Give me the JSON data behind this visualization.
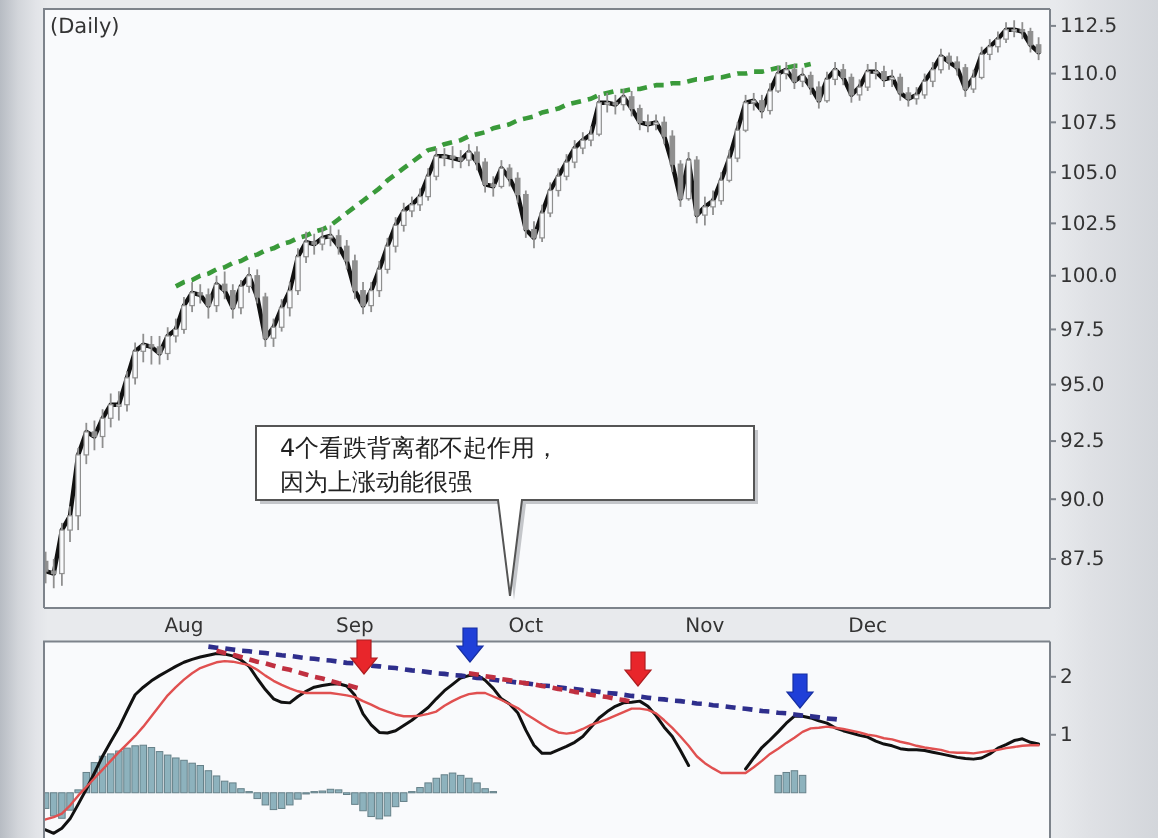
{
  "chart_data": [
    {
      "type": "line",
      "title": "(Daily)",
      "log": true,
      "categories": [
        null,
        null,
        null,
        null,
        null,
        null,
        null,
        null,
        null,
        null,
        null,
        null,
        null,
        null,
        null,
        null,
        null,
        "Aug",
        null,
        null,
        null,
        null,
        null,
        null,
        null,
        null,
        null,
        null,
        null,
        null,
        null,
        null,
        null,
        null,
        null,
        null,
        null,
        null,
        "Sep",
        null,
        null,
        null,
        null,
        null,
        null,
        null,
        null,
        null,
        null,
        null,
        null,
        null,
        null,
        null,
        null,
        null,
        null,
        null,
        null,
        "Oct",
        null,
        null,
        null,
        null,
        null,
        null,
        null,
        null,
        null,
        null,
        null,
        null,
        null,
        null,
        null,
        null,
        null,
        null,
        null,
        null,
        null,
        "Nov",
        null,
        null,
        null,
        null,
        null,
        null,
        null,
        null,
        null,
        null,
        null,
        null,
        null,
        null,
        null,
        null,
        null,
        null,
        null,
        "Dec",
        null,
        null,
        null,
        null,
        null,
        null,
        null,
        null,
        null,
        null,
        null,
        null,
        null,
        null,
        null,
        null,
        null,
        null,
        null,
        null,
        null
      ],
      "ylim": [
        85.5,
        113.4
      ],
      "yticks": [
        87.5,
        {
          "value": 90,
          "label": "90.0"
        },
        92.5,
        {
          "value": 95,
          "label": "95.0"
        },
        97.5,
        {
          "value": 100,
          "label": "100.0"
        },
        102.5,
        {
          "value": 105,
          "label": "105.0"
        },
        107.5,
        {
          "value": 110,
          "label": "110.0"
        },
        112.5
      ],
      "series": [
        {
          "color": "#111111",
          "values": [
            87.0,
            86.9,
            88.7,
            89.3,
            91.9,
            92.9,
            92.7,
            93.5,
            94.1,
            94.1,
            95.3,
            96.5,
            96.8,
            96.7,
            96.4,
            97.2,
            97.5,
            98.6,
            99.2,
            99.1,
            98.6,
            99.6,
            99.3,
            98.5,
            99.5,
            100.0,
            99.0,
            97.1,
            97.6,
            98.5,
            99.3,
            100.9,
            101.6,
            101.5,
            101.8,
            101.9,
            101.4,
            100.7,
            99.3,
            98.6,
            99.3,
            100.3,
            101.4,
            102.4,
            103.1,
            103.4,
            103.8,
            104.8,
            105.8,
            105.8,
            105.7,
            105.6,
            106.0,
            105.5,
            104.4,
            104.3,
            105.2,
            104.7,
            103.9,
            102.2,
            101.8,
            103.0,
            104.1,
            104.8,
            105.5,
            106.2,
            106.6,
            106.9,
            108.5,
            108.5,
            108.4,
            108.8,
            108.2,
            107.5,
            107.4,
            107.5,
            106.8,
            105.4,
            103.7,
            105.6,
            102.9,
            103.3,
            103.6,
            104.6,
            105.7,
            107.1,
            108.5,
            108.6,
            108.1,
            109.1,
            110.0,
            110.2,
            109.6,
            109.9,
            109.3,
            108.6,
            109.7,
            110.2,
            109.8,
            108.9,
            109.3,
            110.1,
            110.1,
            109.7,
            109.8,
            109.0,
            108.7,
            108.9,
            109.6,
            110.2,
            110.9,
            110.6,
            110.3,
            109.2,
            109.8,
            111.0,
            111.4,
            111.8,
            112.3,
            112.3,
            112.2,
            111.5,
            111.1
          ]
        },
        {
          "type": "candlestick",
          "color": "#8f8f8f",
          "ohlc": [
            [
              87.4,
              87.8,
              86.5,
              87.0
            ],
            [
              87.0,
              87.5,
              86.3,
              86.9
            ],
            [
              86.9,
              89.0,
              86.4,
              88.7
            ],
            [
              88.7,
              89.7,
              88.2,
              89.3
            ],
            [
              89.3,
              92.2,
              88.7,
              91.9
            ],
            [
              91.9,
              93.3,
              91.5,
              92.9
            ],
            [
              92.9,
              93.4,
              92.1,
              92.7
            ],
            [
              92.7,
              93.9,
              92.2,
              93.5
            ],
            [
              93.5,
              94.6,
              93.1,
              94.1
            ],
            [
              94.1,
              94.7,
              93.4,
              94.1
            ],
            [
              94.1,
              95.6,
              93.8,
              95.3
            ],
            [
              95.3,
              96.9,
              95.0,
              96.5
            ],
            [
              96.5,
              97.3,
              96.0,
              96.8
            ],
            [
              96.8,
              97.2,
              95.9,
              96.7
            ],
            [
              96.7,
              97.2,
              95.9,
              96.4
            ],
            [
              96.4,
              97.6,
              96.1,
              97.2
            ],
            [
              97.2,
              98.0,
              96.9,
              97.5
            ],
            [
              97.5,
              99.0,
              97.3,
              98.6
            ],
            [
              98.6,
              99.7,
              98.3,
              99.2
            ],
            [
              99.2,
              99.6,
              98.7,
              99.1
            ],
            [
              99.1,
              99.4,
              98.0,
              98.6
            ],
            [
              98.6,
              100.0,
              98.3,
              99.6
            ],
            [
              99.6,
              100.2,
              98.9,
              99.3
            ],
            [
              99.3,
              99.6,
              98.0,
              98.5
            ],
            [
              98.5,
              99.8,
              98.2,
              99.5
            ],
            [
              99.5,
              100.4,
              99.2,
              100.0
            ],
            [
              100.0,
              100.3,
              98.7,
              99.0
            ],
            [
              99.0,
              99.2,
              96.7,
              97.1
            ],
            [
              97.1,
              98.0,
              96.7,
              97.6
            ],
            [
              97.6,
              98.9,
              97.4,
              98.5
            ],
            [
              98.5,
              99.7,
              98.1,
              99.3
            ],
            [
              99.3,
              101.3,
              99.1,
              100.9
            ],
            [
              100.9,
              102.1,
              100.6,
              101.6
            ],
            [
              101.6,
              102.0,
              101.0,
              101.5
            ],
            [
              101.5,
              102.3,
              101.2,
              101.8
            ],
            [
              101.8,
              102.4,
              101.4,
              101.9
            ],
            [
              101.9,
              102.2,
              101.0,
              101.4
            ],
            [
              101.4,
              101.7,
              100.3,
              100.7
            ],
            [
              100.7,
              101.0,
              98.9,
              99.3
            ],
            [
              99.3,
              99.7,
              98.2,
              98.6
            ],
            [
              98.6,
              99.7,
              98.3,
              99.3
            ],
            [
              99.3,
              100.7,
              99.0,
              100.3
            ],
            [
              100.3,
              101.8,
              100.1,
              101.4
            ],
            [
              101.4,
              102.8,
              101.1,
              102.4
            ],
            [
              102.4,
              103.5,
              102.1,
              103.1
            ],
            [
              103.1,
              103.8,
              102.8,
              103.4
            ],
            [
              103.4,
              104.2,
              103.1,
              103.8
            ],
            [
              103.8,
              105.2,
              103.6,
              104.8
            ],
            [
              104.8,
              106.2,
              104.6,
              105.8
            ],
            [
              105.8,
              106.2,
              105.3,
              105.8
            ],
            [
              105.8,
              106.3,
              105.2,
              105.7
            ],
            [
              105.7,
              106.1,
              105.2,
              105.6
            ],
            [
              105.6,
              106.4,
              105.3,
              106.0
            ],
            [
              106.0,
              106.3,
              105.1,
              105.5
            ],
            [
              105.5,
              105.7,
              104.0,
              104.4
            ],
            [
              104.4,
              104.8,
              103.8,
              104.3
            ],
            [
              104.3,
              105.6,
              104.2,
              105.2
            ],
            [
              105.2,
              105.4,
              104.3,
              104.7
            ],
            [
              104.7,
              105.0,
              103.5,
              103.9
            ],
            [
              103.9,
              104.1,
              101.8,
              102.2
            ],
            [
              102.2,
              102.6,
              101.3,
              101.8
            ],
            [
              101.8,
              103.4,
              101.6,
              103.0
            ],
            [
              103.0,
              104.5,
              102.8,
              104.1
            ],
            [
              104.1,
              105.2,
              103.8,
              104.8
            ],
            [
              104.8,
              105.9,
              104.6,
              105.5
            ],
            [
              105.5,
              106.6,
              105.2,
              106.2
            ],
            [
              106.2,
              107.0,
              105.9,
              106.6
            ],
            [
              106.6,
              107.3,
              106.3,
              106.9
            ],
            [
              106.9,
              108.9,
              106.8,
              108.5
            ],
            [
              108.5,
              109.0,
              108.0,
              108.5
            ],
            [
              108.5,
              108.9,
              107.9,
              108.4
            ],
            [
              108.4,
              109.2,
              108.1,
              108.8
            ],
            [
              108.8,
              109.1,
              107.8,
              108.2
            ],
            [
              108.2,
              108.4,
              107.1,
              107.5
            ],
            [
              107.5,
              107.9,
              107.0,
              107.4
            ],
            [
              107.4,
              107.9,
              107.1,
              107.5
            ],
            [
              107.5,
              107.8,
              106.4,
              106.8
            ],
            [
              106.8,
              107.1,
              105.0,
              105.4
            ],
            [
              105.4,
              105.6,
              103.3,
              103.7
            ],
            [
              103.7,
              106.0,
              103.6,
              105.6
            ],
            [
              105.6,
              105.8,
              102.5,
              102.9
            ],
            [
              102.9,
              103.8,
              102.4,
              103.3
            ],
            [
              103.3,
              104.1,
              102.9,
              103.6
            ],
            [
              103.6,
              105.0,
              103.4,
              104.6
            ],
            [
              104.6,
              106.1,
              104.5,
              105.7
            ],
            [
              105.7,
              107.5,
              105.5,
              107.1
            ],
            [
              107.1,
              108.9,
              107.0,
              108.5
            ],
            [
              108.5,
              109.0,
              108.1,
              108.6
            ],
            [
              108.6,
              108.9,
              107.7,
              108.1
            ],
            [
              108.1,
              109.5,
              107.9,
              109.1
            ],
            [
              109.1,
              110.4,
              109.0,
              110.0
            ],
            [
              110.0,
              110.6,
              109.7,
              110.2
            ],
            [
              110.2,
              110.5,
              109.2,
              109.6
            ],
            [
              109.6,
              110.3,
              109.3,
              109.9
            ],
            [
              109.9,
              110.1,
              108.9,
              109.3
            ],
            [
              109.3,
              109.6,
              108.2,
              108.6
            ],
            [
              108.6,
              110.1,
              108.5,
              109.7
            ],
            [
              109.7,
              110.6,
              109.4,
              110.2
            ],
            [
              110.2,
              110.5,
              109.4,
              109.8
            ],
            [
              109.8,
              110.0,
              108.5,
              108.9
            ],
            [
              108.9,
              109.7,
              108.6,
              109.3
            ],
            [
              109.3,
              110.5,
              109.1,
              110.1
            ],
            [
              110.1,
              110.6,
              109.7,
              110.1
            ],
            [
              110.1,
              110.4,
              109.3,
              109.7
            ],
            [
              109.7,
              110.2,
              109.3,
              109.8
            ],
            [
              109.8,
              110.0,
              108.6,
              109.0
            ],
            [
              109.0,
              109.3,
              108.3,
              108.7
            ],
            [
              108.7,
              109.3,
              108.4,
              108.9
            ],
            [
              108.9,
              110.0,
              108.7,
              109.6
            ],
            [
              109.6,
              110.6,
              109.3,
              110.2
            ],
            [
              110.2,
              111.3,
              110.0,
              110.9
            ],
            [
              110.9,
              111.1,
              110.2,
              110.6
            ],
            [
              110.6,
              110.9,
              109.9,
              110.3
            ],
            [
              110.3,
              110.5,
              108.8,
              109.2
            ],
            [
              109.2,
              110.2,
              109.0,
              109.8
            ],
            [
              109.8,
              111.4,
              109.7,
              111.0
            ],
            [
              111.0,
              111.8,
              110.7,
              111.4
            ],
            [
              111.4,
              112.2,
              111.1,
              111.8
            ],
            [
              111.8,
              112.7,
              111.6,
              112.3
            ],
            [
              112.3,
              112.8,
              111.9,
              112.3
            ],
            [
              112.3,
              112.7,
              111.8,
              112.2
            ],
            [
              112.2,
              112.4,
              111.1,
              111.5
            ],
            [
              111.5,
              111.9,
              110.7,
              111.1
            ]
          ]
        },
        {
          "color": "#3a9a3a",
          "line_style": "dashed",
          "values": [
            null,
            null,
            null,
            null,
            null,
            null,
            null,
            null,
            null,
            null,
            null,
            null,
            null,
            null,
            null,
            null,
            99.5,
            99.7,
            99.8,
            100.0,
            100.1,
            100.3,
            100.4,
            100.6,
            100.7,
            100.9,
            101.0,
            101.2,
            101.3,
            101.5,
            101.6,
            101.8,
            101.9,
            102.1,
            102.2,
            102.4,
            102.7,
            103.0,
            103.3,
            103.6,
            103.9,
            104.2,
            104.6,
            104.9,
            105.2,
            105.5,
            105.8,
            106.1,
            106.2,
            106.4,
            106.5,
            106.6,
            106.8,
            106.9,
            107.0,
            107.2,
            107.3,
            107.4,
            107.6,
            107.7,
            107.8,
            108.0,
            108.1,
            108.2,
            108.4,
            108.5,
            108.6,
            108.7,
            108.9,
            109.0,
            109.1,
            109.1,
            109.2,
            109.2,
            109.3,
            109.4,
            109.4,
            109.5,
            109.5,
            109.6,
            109.7,
            109.7,
            109.8,
            109.8,
            109.9,
            110.0,
            110.0,
            110.1,
            110.1,
            110.2,
            110.3,
            110.3,
            110.4,
            110.4,
            110.5,
            null,
            null,
            null,
            null,
            null,
            null,
            null,
            null,
            null,
            null,
            null,
            null,
            null,
            null,
            null,
            null,
            null,
            null,
            null,
            null,
            null,
            null,
            null,
            null,
            null,
            null,
            null,
            null
          ]
        }
      ],
      "annotations": [
        "4个看跌背离都不起作用，",
        "因为上涨动能很强"
      ]
    },
    {
      "type": "line",
      "tick_labels": "y",
      "categories": [
        null,
        null,
        null,
        null,
        null,
        null,
        null,
        null,
        null,
        null,
        null,
        null,
        null,
        null,
        null,
        null,
        null,
        null,
        null,
        null,
        null,
        null,
        null,
        null,
        null,
        null,
        null,
        null,
        null,
        null,
        null,
        null,
        null,
        null,
        null,
        null,
        null,
        null,
        null,
        null,
        null,
        null,
        null,
        null,
        null,
        null,
        null,
        null,
        null,
        null,
        null,
        null,
        null,
        null,
        null,
        null,
        null,
        null,
        null,
        null,
        null,
        null,
        null,
        null,
        null,
        null,
        null,
        null,
        null,
        null,
        null,
        null,
        null,
        null,
        null,
        null,
        null,
        null,
        null,
        null,
        null,
        null,
        null,
        null,
        null,
        null,
        null,
        null,
        null,
        null,
        null,
        null,
        null,
        null,
        null,
        null,
        null,
        null,
        null,
        null,
        null,
        null,
        null,
        null,
        null,
        null,
        null,
        null,
        null,
        null,
        null,
        null,
        null,
        null,
        null,
        null,
        null,
        null,
        null,
        null,
        null,
        null,
        null
      ],
      "ylim": [
        -0.78,
        2.61
      ],
      "yticks": [
        1,
        2
      ],
      "series": [
        {
          "type": "bar",
          "color": "#8db2bd",
          "values": [
            -0.27,
            -0.4,
            -0.44,
            -0.3,
            0.05,
            0.35,
            0.52,
            0.63,
            0.67,
            0.72,
            0.77,
            0.81,
            0.82,
            0.78,
            0.71,
            0.65,
            0.6,
            0.56,
            0.51,
            0.47,
            0.38,
            0.29,
            0.2,
            0.17,
            0.07,
            0.02,
            -0.1,
            -0.21,
            -0.29,
            -0.27,
            -0.21,
            -0.11,
            -0.02,
            0.02,
            0.03,
            0.06,
            0.05,
            -0.03,
            -0.2,
            -0.31,
            -0.41,
            -0.45,
            -0.4,
            -0.24,
            -0.15,
            0.02,
            0.09,
            0.17,
            0.25,
            0.31,
            0.34,
            0.3,
            0.25,
            0.17,
            0.07,
            0.02,
            null,
            null,
            null,
            null,
            null,
            null,
            null,
            null,
            null,
            null,
            null,
            null,
            null,
            null,
            null,
            null,
            null,
            null,
            null,
            null,
            null,
            null,
            null,
            null,
            null,
            null,
            null,
            null,
            null,
            null,
            null,
            null,
            null,
            null,
            0.3,
            0.35,
            0.38,
            0.3,
            null,
            null,
            null,
            null,
            null,
            null,
            null,
            null,
            null,
            null,
            null,
            null,
            null,
            null,
            null,
            null,
            null,
            null,
            null,
            null,
            null,
            null,
            null,
            null,
            null,
            null,
            null,
            null,
            null
          ]
        },
        {
          "color": "#111111",
          "values": [
            -0.64,
            -0.7,
            -0.61,
            -0.45,
            -0.2,
            0.06,
            0.34,
            0.63,
            0.88,
            1.12,
            1.41,
            1.69,
            1.82,
            1.93,
            2.02,
            2.1,
            2.18,
            2.25,
            2.3,
            2.34,
            2.37,
            2.4,
            2.39,
            2.36,
            2.29,
            2.18,
            1.97,
            1.78,
            1.62,
            1.56,
            1.55,
            1.66,
            1.75,
            1.82,
            1.85,
            1.87,
            1.88,
            1.84,
            1.68,
            1.36,
            1.17,
            1.04,
            1.03,
            1.07,
            1.16,
            1.25,
            1.36,
            1.47,
            1.62,
            1.76,
            1.87,
            1.98,
            2.02,
            2.03,
            1.94,
            1.8,
            1.62,
            1.53,
            1.38,
            1.08,
            0.82,
            0.68,
            0.68,
            0.74,
            0.8,
            0.87,
            0.97,
            1.13,
            1.29,
            1.4,
            1.49,
            1.55,
            1.56,
            1.58,
            1.49,
            1.33,
            1.13,
            0.97,
            0.73,
            0.47,
            null,
            null,
            null,
            null,
            null,
            null,
            0.41,
            0.6,
            0.78,
            0.91,
            1.05,
            1.2,
            1.32,
            1.32,
            1.29,
            1.24,
            1.2,
            1.12,
            1.07,
            1.03,
            0.99,
            0.96,
            0.89,
            0.84,
            0.81,
            0.76,
            0.74,
            0.74,
            0.73,
            0.7,
            0.67,
            0.64,
            0.61,
            0.59,
            0.58,
            0.6,
            0.67,
            0.77,
            0.83,
            0.9,
            0.93,
            0.87,
            0.84
          ]
        },
        {
          "color": "#e05050",
          "values": [
            -0.46,
            -0.42,
            -0.36,
            -0.22,
            -0.05,
            0.1,
            0.25,
            0.4,
            0.55,
            0.7,
            0.84,
            0.98,
            1.14,
            1.32,
            1.5,
            1.68,
            1.82,
            1.95,
            2.06,
            2.15,
            2.2,
            2.25,
            2.27,
            2.26,
            2.23,
            2.2,
            2.12,
            2.02,
            1.93,
            1.86,
            1.8,
            1.75,
            1.72,
            1.72,
            1.72,
            1.72,
            1.7,
            1.68,
            1.65,
            1.58,
            1.52,
            1.45,
            1.4,
            1.35,
            1.32,
            1.32,
            1.33,
            1.36,
            1.4,
            1.5,
            1.58,
            1.65,
            1.7,
            1.72,
            1.72,
            1.66,
            1.6,
            1.53,
            1.46,
            1.36,
            1.27,
            1.18,
            1.1,
            1.04,
            1.02,
            1.04,
            1.1,
            1.17,
            1.22,
            1.27,
            1.33,
            1.39,
            1.45,
            1.45,
            1.43,
            1.37,
            1.25,
            1.12,
            0.97,
            0.81,
            0.63,
            0.51,
            0.42,
            0.34,
            0.34,
            0.34,
            0.34,
            0.44,
            0.55,
            0.67,
            0.76,
            0.86,
            0.95,
            1.05,
            1.11,
            1.12,
            1.14,
            1.12,
            1.1,
            1.07,
            1.04,
            1.0,
            0.98,
            0.94,
            0.92,
            0.88,
            0.85,
            0.81,
            0.78,
            0.76,
            0.74,
            0.7,
            0.69,
            0.69,
            0.68,
            0.7,
            0.72,
            0.74,
            0.77,
            0.79,
            0.81,
            0.82,
            0.82
          ]
        },
        {
          "color": "#2e2e8c",
          "line_style": "dashed",
          "values": [
            null,
            null,
            null,
            null,
            null,
            null,
            null,
            null,
            null,
            null,
            null,
            null,
            null,
            null,
            null,
            null,
            null,
            null,
            null,
            null,
            2.52,
            2.5,
            2.49,
            2.47,
            2.45,
            2.44,
            2.42,
            2.41,
            2.39,
            2.37,
            2.36,
            2.34,
            2.32,
            2.31,
            2.29,
            2.28,
            2.26,
            2.24,
            2.23,
            null,
            2.19,
            2.18,
            2.16,
            2.15,
            2.13,
            2.11,
            2.1,
            2.08,
            2.06,
            2.05,
            2.03,
            2.02,
            2.0,
            1.98,
            1.97,
            1.95,
            1.93,
            1.92,
            1.9,
            1.89,
            1.87,
            1.85,
            1.84,
            1.82,
            1.8,
            1.79,
            1.77,
            1.76,
            1.74,
            1.72,
            1.71,
            1.69,
            1.67,
            1.66,
            1.64,
            1.62,
            1.61,
            1.59,
            1.58,
            1.56,
            1.54,
            1.53,
            1.51,
            1.5,
            1.48,
            1.46,
            1.45,
            1.43,
            1.41,
            1.4,
            1.38,
            1.37,
            1.35,
            1.33,
            1.32,
            1.3,
            1.28,
            1.27,
            1.25,
            null,
            null,
            null,
            null,
            null,
            null,
            null,
            null,
            null,
            null,
            null,
            null,
            null,
            null,
            null,
            null,
            null,
            null,
            null,
            null,
            null,
            null,
            null,
            null
          ]
        },
        {
          "color": "#c03040",
          "line_style": "dashed",
          "values": [
            null,
            null,
            null,
            null,
            null,
            null,
            null,
            null,
            null,
            null,
            null,
            null,
            null,
            null,
            null,
            null,
            null,
            null,
            null,
            null,
            null,
            2.45,
            2.41,
            2.38,
            2.34,
            2.3,
            2.26,
            2.23,
            2.19,
            2.15,
            2.12,
            2.08,
            2.04,
            2.0,
            1.97,
            1.93,
            1.89,
            1.86,
            1.82,
            1.78,
            null,
            null,
            null,
            null,
            null,
            null,
            null,
            null,
            null,
            null,
            null,
            null,
            null,
            null,
            null,
            null,
            null,
            null,
            null,
            null,
            null,
            null,
            null,
            null,
            null,
            null,
            null,
            null,
            null,
            null,
            null,
            null,
            null,
            null,
            null,
            null,
            null,
            null,
            null,
            null,
            null,
            null,
            null,
            null,
            null,
            null,
            null,
            null,
            null,
            null,
            null,
            null,
            null,
            null,
            null,
            null,
            null,
            null,
            null,
            null,
            null,
            null,
            null,
            null,
            null,
            null,
            null,
            null,
            null,
            null,
            null,
            null,
            null,
            null,
            null,
            null,
            null,
            null,
            null,
            null,
            null,
            null,
            null
          ]
        },
        {
          "color": "#c03040",
          "line_style": "dashed",
          "values": [
            null,
            null,
            null,
            null,
            null,
            null,
            null,
            null,
            null,
            null,
            null,
            null,
            null,
            null,
            null,
            null,
            null,
            null,
            null,
            null,
            null,
            null,
            null,
            null,
            null,
            null,
            null,
            null,
            null,
            null,
            null,
            null,
            null,
            null,
            null,
            null,
            null,
            null,
            null,
            null,
            null,
            null,
            null,
            null,
            null,
            null,
            null,
            null,
            null,
            null,
            null,
            null,
            2.06,
            2.04,
            2.01,
            1.99,
            1.96,
            1.94,
            1.91,
            1.89,
            1.87,
            1.84,
            1.82,
            1.79,
            1.77,
            1.74,
            1.72,
            1.69,
            1.67,
            1.65,
            1.62,
            1.6,
            1.57,
            null,
            null,
            null,
            null,
            null,
            null,
            null,
            null,
            null,
            null,
            null,
            null,
            null,
            null,
            null,
            null,
            null,
            null,
            null,
            null,
            null,
            null,
            null,
            null,
            null,
            null,
            null,
            null,
            null,
            null,
            null,
            null,
            null,
            null,
            null,
            null,
            null,
            null,
            null,
            null,
            null,
            null,
            null,
            null,
            null,
            null,
            null,
            null,
            null,
            null
          ]
        }
      ]
    }
  ]
}
